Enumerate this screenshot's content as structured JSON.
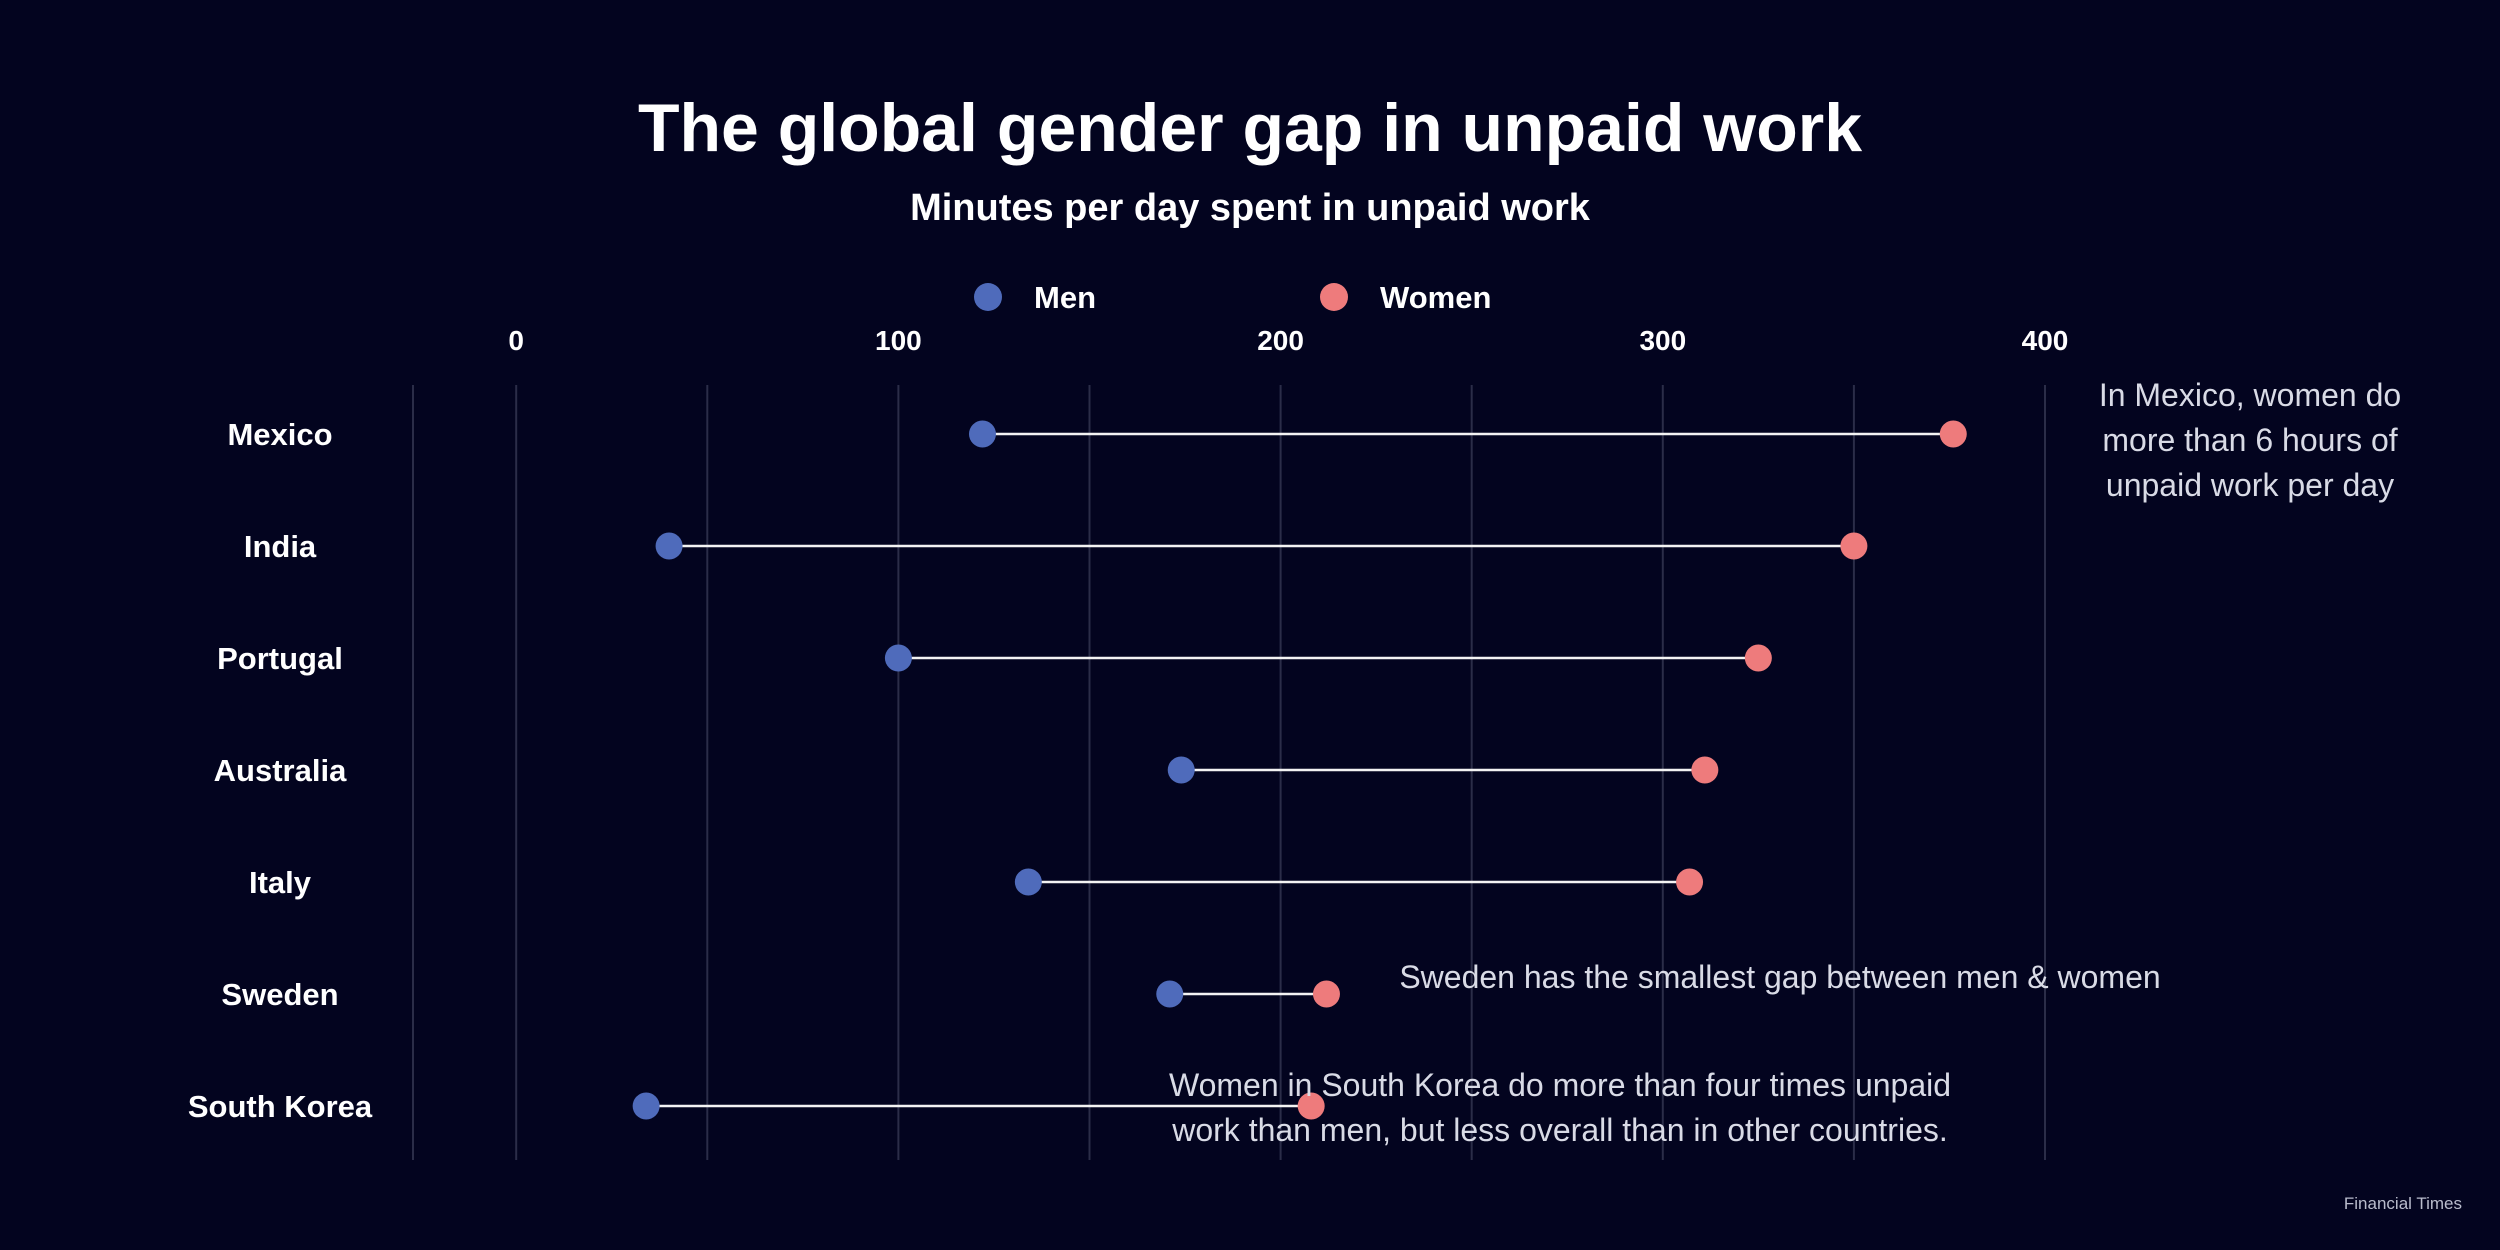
{
  "title": "The global gender gap in unpaid  work",
  "subtitle": "Minutes per day spent in unpaid work",
  "source": "Financial Times",
  "colors": {
    "background": "#03041f",
    "men": "#4f6bbb",
    "women": "#ee7b7c",
    "connector": "#f3f3f3",
    "grid": "#2b2d48"
  },
  "chart_data": {
    "type": "dumbbell",
    "title": "The global gender gap in unpaid  work",
    "subtitle": "Minutes per day spent in unpaid work",
    "xlabel": "",
    "ylabel": "",
    "xlim": [
      -27,
      400
    ],
    "xticks": [
      0,
      100,
      200,
      300,
      400
    ],
    "grid": true,
    "legend_placement": "top-center",
    "categories": [
      "Mexico",
      "India",
      "Portugal",
      "Australia",
      "Italy",
      "Sweden",
      "South Korea"
    ],
    "series": [
      {
        "name": "Men",
        "color": "#4f6bbb",
        "values": [
          122,
          40,
          100,
          174,
          134,
          171,
          34
        ]
      },
      {
        "name": "Women",
        "color": "#ee7b7c",
        "values": [
          376,
          350,
          325,
          311,
          307,
          212,
          208
        ]
      }
    ],
    "annotations": [
      {
        "category": "Mexico",
        "lines": [
          "In Mexico, women do",
          "more than 6 hours of",
          "unpaid work per day"
        ]
      },
      {
        "category": "Sweden",
        "lines": [
          "Sweden has the smallest gap between men & women"
        ]
      },
      {
        "category": "South Korea",
        "lines": [
          "Women in South Korea do more than four times unpaid",
          "work than men, but less overall than in other countries."
        ]
      }
    ]
  }
}
